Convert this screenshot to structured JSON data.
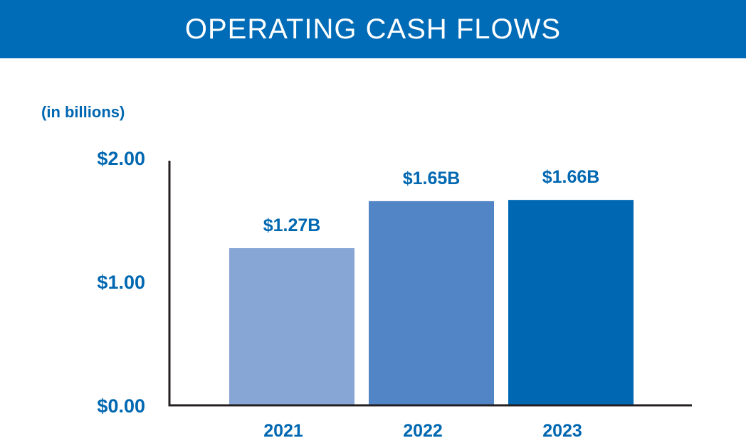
{
  "header": {
    "title": "OPERATING CASH FLOWS"
  },
  "colors": {
    "banner": "#006bb6",
    "text": "#0067b1",
    "axis": "#231f20",
    "bars": [
      "#87a6d5",
      "#5285c5",
      "#0068b3"
    ]
  },
  "chart_data": {
    "type": "bar",
    "title": "OPERATING CASH FLOWS",
    "unit_note": "(in billions)",
    "categories": [
      "2021",
      "2022",
      "2023"
    ],
    "values": [
      1.27,
      1.65,
      1.66
    ],
    "value_labels": [
      "$1.27B",
      "$1.65B",
      "$1.66B"
    ],
    "y_ticks": [
      0,
      1,
      2
    ],
    "y_tick_labels": [
      "$0.00",
      "$1.00",
      "$2.00"
    ],
    "ylim": [
      0,
      2
    ],
    "grid": false,
    "legend": "none"
  }
}
